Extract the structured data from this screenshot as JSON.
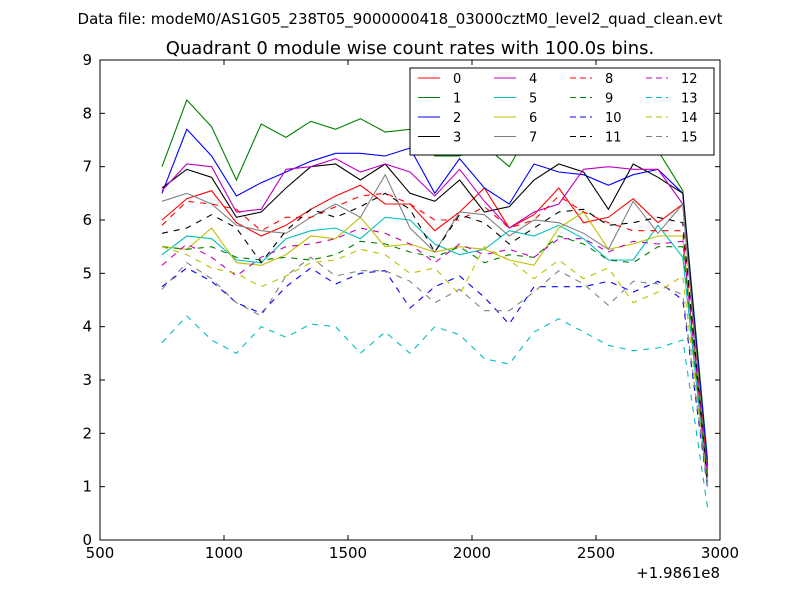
{
  "suptitle": "Data file: modeM0/AS1G05_238T05_9000000418_03000cztM0_level2_quad_clean.evt",
  "chart_data": {
    "type": "line",
    "title": "Quadrant 0 module wise count rates with 100.0s bins.",
    "xlabel": "",
    "ylabel": "",
    "x_offset_label": "+1.9861e8",
    "xlim": [
      500,
      3000
    ],
    "ylim": [
      0,
      9
    ],
    "xticks": [
      500,
      1000,
      1500,
      2000,
      2500,
      3000
    ],
    "xtick_labels": [
      "500",
      "1000",
      "1500",
      "2000",
      "2500",
      "3000"
    ],
    "yticks": [
      0,
      1,
      2,
      3,
      4,
      5,
      6,
      7,
      8,
      9
    ],
    "ytick_labels": [
      "0",
      "1",
      "2",
      "3",
      "4",
      "5",
      "6",
      "7",
      "8",
      "9"
    ],
    "grid": false,
    "legend_position": "top-right",
    "legend_columns": 4,
    "x": [
      750,
      850,
      950,
      1050,
      1150,
      1250,
      1350,
      1450,
      1550,
      1650,
      1750,
      1850,
      1950,
      2050,
      2150,
      2250,
      2350,
      2450,
      2550,
      2650,
      2750,
      2850,
      2950
    ],
    "series": [
      {
        "name": "0",
        "color": "#ff0000",
        "dash": "solid",
        "values": [
          6.0,
          6.4,
          6.55,
          5.95,
          5.7,
          5.9,
          6.2,
          6.45,
          6.65,
          6.3,
          6.3,
          5.8,
          6.15,
          6.6,
          5.85,
          6.1,
          6.6,
          5.95,
          6.05,
          6.4,
          5.95,
          6.3,
          1.3
        ]
      },
      {
        "name": "1",
        "color": "#008000",
        "dash": "solid",
        "values": [
          7.0,
          8.25,
          7.75,
          6.75,
          7.8,
          7.55,
          7.85,
          7.7,
          7.9,
          7.65,
          7.7,
          7.2,
          7.2,
          7.4,
          7.0,
          7.8,
          7.55,
          7.5,
          7.3,
          7.5,
          7.3,
          6.55,
          1.5
        ]
      },
      {
        "name": "2",
        "color": "#0000ff",
        "dash": "solid",
        "values": [
          6.5,
          7.7,
          7.2,
          6.45,
          6.7,
          6.9,
          7.1,
          7.25,
          7.25,
          7.2,
          7.35,
          6.5,
          7.15,
          6.6,
          6.3,
          7.05,
          6.9,
          6.85,
          6.65,
          6.85,
          6.95,
          6.5,
          1.4
        ]
      },
      {
        "name": "3",
        "color": "#000000",
        "dash": "solid",
        "values": [
          6.6,
          6.95,
          6.8,
          6.05,
          6.15,
          6.6,
          7.0,
          7.05,
          6.75,
          7.05,
          6.5,
          6.35,
          6.75,
          6.15,
          6.25,
          6.75,
          7.05,
          6.9,
          6.2,
          7.05,
          6.8,
          6.5,
          1.2
        ]
      },
      {
        "name": "4",
        "color": "#bf00bf",
        "dash": "solid",
        "values": [
          6.55,
          7.05,
          7.0,
          6.15,
          6.2,
          6.95,
          7.0,
          7.15,
          6.9,
          7.05,
          6.9,
          6.45,
          6.95,
          6.35,
          5.85,
          6.15,
          6.3,
          6.95,
          7.0,
          6.95,
          6.95,
          6.3,
          1.1
        ]
      },
      {
        "name": "5",
        "color": "#00bfbf",
        "dash": "solid",
        "values": [
          5.35,
          5.7,
          5.65,
          5.25,
          5.2,
          5.65,
          5.8,
          5.85,
          5.65,
          6.05,
          6.0,
          5.55,
          5.35,
          5.45,
          5.8,
          5.7,
          5.9,
          5.65,
          5.25,
          5.25,
          5.9,
          5.3,
          1.0
        ]
      },
      {
        "name": "6",
        "color": "#bfbf00",
        "dash": "solid",
        "values": [
          5.5,
          5.45,
          5.85,
          5.2,
          5.15,
          5.35,
          5.7,
          5.65,
          6.05,
          5.5,
          5.55,
          5.4,
          5.5,
          5.45,
          5.25,
          5.15,
          5.85,
          6.15,
          5.45,
          5.55,
          5.7,
          5.7,
          1.1
        ]
      },
      {
        "name": "7",
        "color": "#808080",
        "dash": "solid",
        "values": [
          6.35,
          6.5,
          6.3,
          5.9,
          5.8,
          5.75,
          6.05,
          6.3,
          6.05,
          6.85,
          5.85,
          5.4,
          6.15,
          6.1,
          5.7,
          6.0,
          5.95,
          5.75,
          5.45,
          6.35,
          5.75,
          6.3,
          1.2
        ]
      },
      {
        "name": "8",
        "color": "#ff0000",
        "dash": "dashed",
        "values": [
          5.9,
          6.35,
          6.3,
          6.2,
          5.8,
          6.05,
          6.05,
          6.25,
          6.45,
          6.5,
          6.3,
          6.0,
          6.0,
          6.25,
          5.85,
          6.0,
          6.45,
          6.15,
          5.95,
          5.8,
          5.8,
          5.8,
          1.3
        ]
      },
      {
        "name": "9",
        "color": "#008000",
        "dash": "dashed",
        "values": [
          5.5,
          5.45,
          5.5,
          5.3,
          5.25,
          5.3,
          5.25,
          5.35,
          5.6,
          5.55,
          5.4,
          5.3,
          5.5,
          5.2,
          5.35,
          5.3,
          5.7,
          5.55,
          5.25,
          5.2,
          5.5,
          5.5,
          1.1
        ]
      },
      {
        "name": "10",
        "color": "#0000ff",
        "dash": "dashed",
        "values": [
          4.75,
          5.1,
          4.85,
          4.45,
          4.25,
          4.75,
          5.1,
          4.8,
          5.0,
          5.05,
          4.35,
          4.75,
          4.95,
          4.55,
          4.05,
          4.75,
          4.75,
          4.75,
          4.85,
          4.65,
          4.85,
          4.5,
          0.95
        ]
      },
      {
        "name": "11",
        "color": "#000000",
        "dash": "dashed",
        "values": [
          5.75,
          5.85,
          6.1,
          5.85,
          5.2,
          5.8,
          6.2,
          6.05,
          6.25,
          6.5,
          6.2,
          5.4,
          6.1,
          5.95,
          5.55,
          5.85,
          6.15,
          6.2,
          5.9,
          5.95,
          6.05,
          5.95,
          1.05
        ]
      },
      {
        "name": "12",
        "color": "#bf00bf",
        "dash": "dashed",
        "values": [
          5.15,
          5.55,
          5.3,
          4.95,
          5.3,
          5.5,
          5.55,
          5.65,
          5.85,
          5.75,
          5.55,
          5.2,
          5.55,
          5.35,
          5.45,
          5.3,
          5.65,
          5.65,
          5.4,
          5.6,
          5.55,
          5.6,
          1.2
        ]
      },
      {
        "name": "13",
        "color": "#00bfbf",
        "dash": "dashed",
        "values": [
          3.7,
          4.2,
          3.75,
          3.5,
          4.0,
          3.8,
          4.05,
          4.0,
          3.5,
          3.9,
          3.5,
          4.0,
          3.85,
          3.4,
          3.3,
          3.9,
          4.15,
          3.9,
          3.65,
          3.55,
          3.6,
          3.75,
          0.6
        ]
      },
      {
        "name": "14",
        "color": "#bfbf00",
        "dash": "dashed",
        "values": [
          5.5,
          5.35,
          5.1,
          5.0,
          4.75,
          4.95,
          5.2,
          5.25,
          5.45,
          5.35,
          5.0,
          5.1,
          4.6,
          5.5,
          5.25,
          4.9,
          5.25,
          4.9,
          5.1,
          4.45,
          4.65,
          4.95,
          1.0
        ]
      },
      {
        "name": "15",
        "color": "#808080",
        "dash": "dashed",
        "values": [
          4.7,
          5.2,
          4.9,
          4.45,
          4.2,
          4.95,
          5.3,
          4.95,
          5.05,
          5.05,
          4.85,
          4.45,
          4.7,
          4.3,
          4.3,
          4.65,
          5.05,
          4.8,
          4.4,
          4.85,
          4.8,
          4.6,
          1.0
        ]
      }
    ]
  }
}
